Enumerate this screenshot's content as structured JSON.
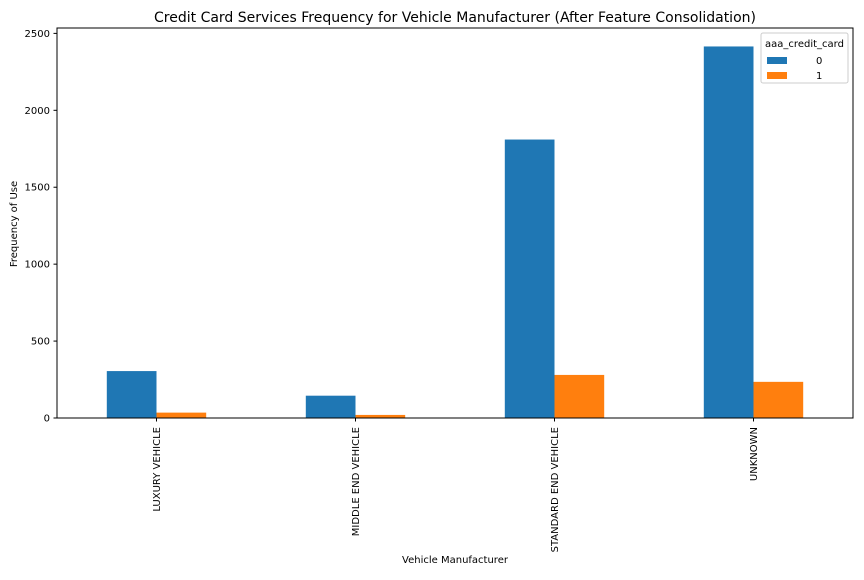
{
  "chart_data": {
    "type": "bar",
    "title": "Credit Card Services Frequency for Vehicle Manufacturer (After Feature Consolidation)",
    "xlabel": "Vehicle Manufacturer",
    "ylabel": "Frequency of Use",
    "categories": [
      "LUXURY VEHICLE",
      "MIDDLE END VEHICLE",
      "STANDARD END VEHICLE",
      "UNKNOWN"
    ],
    "series": [
      {
        "name": "0",
        "values": [
          305,
          145,
          1810,
          2415
        ],
        "color": "#1f77b4"
      },
      {
        "name": "1",
        "values": [
          35,
          20,
          280,
          235
        ],
        "color": "#ff7f0e"
      }
    ],
    "legend_title": "aaa_credit_card",
    "legend_position": "top-right",
    "yticks": [
      0,
      500,
      1000,
      1500,
      2000,
      2500
    ],
    "ylim": [
      0,
      2535
    ],
    "grid": false
  }
}
